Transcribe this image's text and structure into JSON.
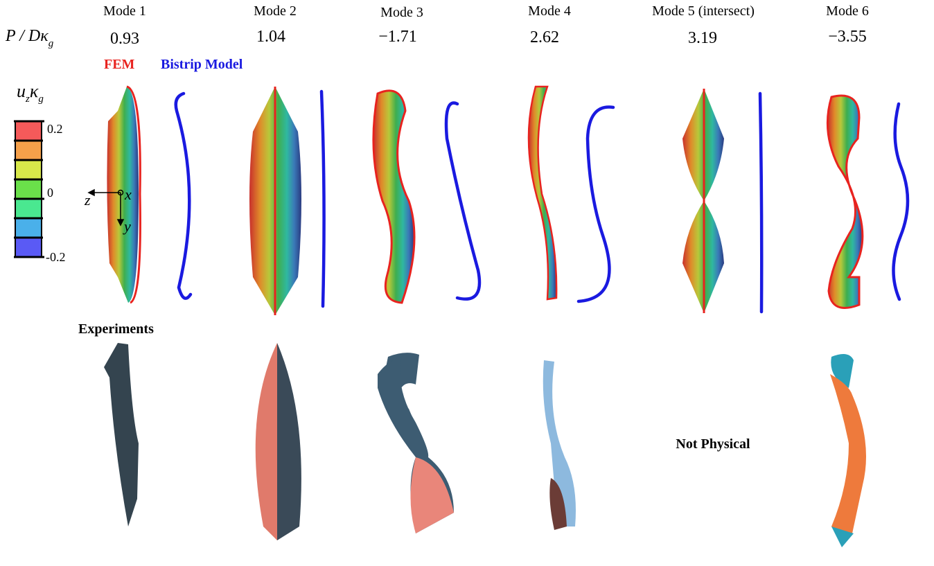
{
  "row_label": {
    "main": "P / Dκ",
    "sub": "g"
  },
  "modes": [
    {
      "title": "Mode 1",
      "load": "0.93"
    },
    {
      "title": "Mode 2",
      "load": "1.04"
    },
    {
      "title": "Mode 3",
      "load": "−1.71"
    },
    {
      "title": "Mode 4",
      "load": "2.62"
    },
    {
      "title": "Mode 5 (intersect)",
      "load": "3.19"
    },
    {
      "title": "Mode 6",
      "load": "−3.55"
    }
  ],
  "legend": {
    "fem": "FEM",
    "bistrip": "Bistrip Model"
  },
  "colorbar": {
    "title": {
      "u": "u",
      "u_sub": "z",
      "k": "κ",
      "k_sub": "g"
    },
    "ticks": [
      "0.2",
      "0",
      "-0.2"
    ]
  },
  "axes": {
    "z": "z",
    "x": "x",
    "y": "y"
  },
  "sections": {
    "experiments": "Experiments",
    "not_physical": "Not Physical"
  }
}
